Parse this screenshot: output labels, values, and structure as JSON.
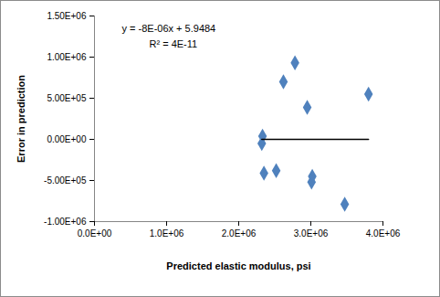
{
  "chart_data": {
    "type": "scatter",
    "x_label": "Predicted elastic modulus, psi",
    "y_label": "Error in prediction",
    "annotations": [
      "y = -8E-06x + 5.9484",
      "R² = 4E-11"
    ],
    "xlim": [
      0,
      4000000
    ],
    "xticks": [
      {
        "value": 0,
        "label": "0.0E+00"
      },
      {
        "value": 1000000,
        "label": "1.0E+06"
      },
      {
        "value": 2000000,
        "label": "2.0E+06"
      },
      {
        "value": 3000000,
        "label": "3.0E+06"
      },
      {
        "value": 4000000,
        "label": "4.0E+06"
      }
    ],
    "ylim": [
      -1000000,
      1500000
    ],
    "yticks": [
      {
        "value": -1000000,
        "label": "-1.00E+06"
      },
      {
        "value": -500000,
        "label": "-5.00E+05"
      },
      {
        "value": 0,
        "label": "0.00E+00"
      },
      {
        "value": 500000,
        "label": "5.00E+05"
      },
      {
        "value": 1000000,
        "label": "1.00E+06"
      },
      {
        "value": 1500000,
        "label": "1.50E+06"
      }
    ],
    "grid": false,
    "series": [
      {
        "type": "scatter",
        "color": "#4f81bd",
        "marker": "diamond",
        "x": [
          2330000,
          2320000,
          2350000,
          2520000,
          2620000,
          2780000,
          2950000,
          3020000,
          3010000,
          3470000,
          3800000
        ],
        "values": [
          40000,
          -50000,
          -410000,
          -380000,
          700000,
          930000,
          390000,
          -450000,
          -520000,
          -790000,
          550000
        ]
      },
      {
        "type": "line",
        "color": "#000000",
        "line_style": "solid",
        "x": [
          2320000,
          3800000
        ],
        "values": [
          0,
          0
        ]
      }
    ]
  }
}
